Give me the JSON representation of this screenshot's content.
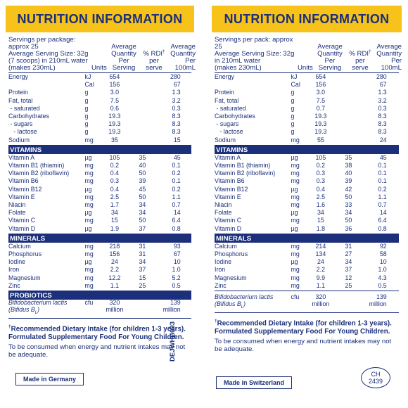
{
  "left": {
    "title": "NUTRITION INFORMATION",
    "serving_lines": [
      "Servings per package: approx 25",
      "Average Serving Size: 32g",
      "(7 scoops) in 210mL water",
      "(makes 230mL)"
    ],
    "col_units": "Units",
    "col_per_serving": [
      "Average",
      "Quantity",
      "Per Serving"
    ],
    "col_rdi": [
      "% RDI",
      "per serve"
    ],
    "col_per_100": [
      "Average",
      "Quantity",
      "Per 100mL"
    ],
    "nutrition": [
      [
        "Energy",
        "kJ",
        "654",
        "",
        "280"
      ],
      [
        "",
        "Cal",
        "156",
        "",
        "67"
      ],
      [
        "Protein",
        "g",
        "3.0",
        "",
        "1.3"
      ],
      [
        "Fat, total",
        "g",
        "7.5",
        "",
        "3.2"
      ],
      [
        " - saturated",
        "g",
        "0.6",
        "",
        "0.3"
      ],
      [
        "Carbohydrates",
        "g",
        "19.3",
        "",
        "8.3"
      ],
      [
        " - sugars",
        "g",
        "19.3",
        "",
        "8.3"
      ],
      [
        "   - lactose",
        "g",
        "19.3",
        "",
        "8.3"
      ],
      [
        "Sodium",
        "mg",
        "35",
        "",
        "15"
      ]
    ],
    "vitamins_label": "VITAMINS",
    "vitamins": [
      [
        "Vitamin A",
        "µg",
        "105",
        "35",
        "45"
      ],
      [
        "Vitamin B1 (thiamin)",
        "mg",
        "0.2",
        "40",
        "0.1"
      ],
      [
        "Vitamin B2 (riboflavin)",
        "mg",
        "0.4",
        "50",
        "0.2"
      ],
      [
        "Vitamin B6",
        "mg",
        "0.3",
        "39",
        "0.1"
      ],
      [
        "Vitamin B12",
        "µg",
        "0.4",
        "45",
        "0.2"
      ],
      [
        "Vitamin E",
        "mg",
        "2.5",
        "50",
        "1.1"
      ],
      [
        "Niacin",
        "mg",
        "1.7",
        "34",
        "0.7"
      ],
      [
        "Folate",
        "µg",
        "34",
        "34",
        "14"
      ],
      [
        "Vitamin C",
        "mg",
        "15",
        "50",
        "6.4"
      ],
      [
        "Vitamin D",
        "µg",
        "1.9",
        "37",
        "0.8"
      ]
    ],
    "minerals_label": "MINERALS",
    "minerals": [
      [
        "Calcium",
        "mg",
        "218",
        "31",
        "93"
      ],
      [
        "Phosphorus",
        "mg",
        "156",
        "31",
        "67"
      ],
      [
        "Iodine",
        "µg",
        "24",
        "34",
        "10"
      ],
      [
        "Iron",
        "mg",
        "2.2",
        "37",
        "1.0"
      ],
      [
        "Magnesium",
        "mg",
        "12.2",
        "15",
        "5.2"
      ],
      [
        "Zinc",
        "mg",
        "1.1",
        "25",
        "0.5"
      ]
    ],
    "probiotics_label": "PROBIOTICS",
    "probiotic": {
      "name1": "Bifidobacterium lactis",
      "name2": "(Bifidus B",
      "name2_sub": "L",
      "name2_end": ")",
      "unit": "cfu",
      "serving": [
        "320",
        "million"
      ],
      "per100": [
        "139",
        "million"
      ]
    },
    "footnote1": "Recommended Dietary Intake (for children 1-3 years).",
    "footnote2": "Formulated Supplementary Food For Young Children.",
    "footnote3": "To be consumed when energy and nutrient intakes may not be adequate.",
    "made_in": "Made in Germany",
    "code": "DEJWHB093"
  },
  "right": {
    "title": "NUTRITION INFORMATION",
    "serving_lines": [
      "Servings per pack: approx 25",
      "Average Serving Size: 32g",
      "in 210mL water",
      "(makes 230mL)"
    ],
    "col_units": "Units",
    "col_per_serving": [
      "Average",
      "Quantity",
      "Per Serving"
    ],
    "col_rdi": [
      "% RDI",
      "per serve"
    ],
    "col_per_100": [
      "Average",
      "Quantity",
      "Per 100mL"
    ],
    "nutrition": [
      [
        "Energy",
        "kJ",
        "654",
        "",
        "280"
      ],
      [
        "",
        "Cal",
        "156",
        "",
        "67"
      ],
      [
        "Protein",
        "g",
        "3.0",
        "",
        "1.3"
      ],
      [
        "Fat, total",
        "g",
        "7.5",
        "",
        "3.2"
      ],
      [
        " - saturated",
        "g",
        "0.7",
        "",
        "0.3"
      ],
      [
        "Carbohydrates",
        "g",
        "19.3",
        "",
        "8.3"
      ],
      [
        " - sugars",
        "g",
        "19.3",
        "",
        "8.3"
      ],
      [
        "   - lactose",
        "g",
        "19.3",
        "",
        "8.3"
      ],
      [
        "Sodium",
        "mg",
        "55",
        "",
        "24"
      ]
    ],
    "vitamins_label": "VITAMINS",
    "vitamins": [
      [
        "Vitamin A",
        "µg",
        "105",
        "35",
        "45"
      ],
      [
        "Vitamin B1 (thiamin)",
        "mg",
        "0.2",
        "38",
        "0.1"
      ],
      [
        "Vitamin B2 (riboflavin)",
        "mg",
        "0.3",
        "40",
        "0.1"
      ],
      [
        "Vitamin B6",
        "mg",
        "0.3",
        "39",
        "0.1"
      ],
      [
        "Vitamin B12",
        "µg",
        "0.4",
        "42",
        "0.2"
      ],
      [
        "Vitamin E",
        "mg",
        "2.5",
        "50",
        "1.1"
      ],
      [
        "Niacin",
        "mg",
        "1.6",
        "33",
        "0.7"
      ],
      [
        "Folate",
        "µg",
        "34",
        "34",
        "14"
      ],
      [
        "Vitamin C",
        "mg",
        "15",
        "50",
        "6.4"
      ],
      [
        "Vitamin D",
        "µg",
        "1.8",
        "36",
        "0.8"
      ]
    ],
    "minerals_label": "MINERALS",
    "minerals": [
      [
        "Calcium",
        "mg",
        "214",
        "31",
        "92"
      ],
      [
        "Phosphorus",
        "mg",
        "134",
        "27",
        "58"
      ],
      [
        "Iodine",
        "µg",
        "24",
        "34",
        "10"
      ],
      [
        "Iron",
        "mg",
        "2.2",
        "37",
        "1.0"
      ],
      [
        "Magnesium",
        "mg",
        "9.9",
        "12",
        "4.3"
      ],
      [
        "Zinc",
        "mg",
        "1.1",
        "25",
        "0.5"
      ]
    ],
    "probiotic": {
      "name1": "Bifidobacterium lactis",
      "name2": "(Bifidus B",
      "name2_sub": "L",
      "name2_end": ")",
      "unit": "cfu",
      "serving": [
        "320",
        "million"
      ],
      "per100": [
        "139",
        "million"
      ]
    },
    "footnote1": "Recommended Dietary Intake (for children 1-3 years).",
    "footnote2": "Formulated Supplementary Food For Young Children.",
    "footnote3": "To be consumed when energy and nutrient intakes may not be adequate.",
    "made_in": "Made in Switzerland",
    "country_mark": [
      "CH",
      "2439"
    ]
  },
  "colors": {
    "banner": "#f7c21a",
    "ink": "#1b2f7a"
  }
}
